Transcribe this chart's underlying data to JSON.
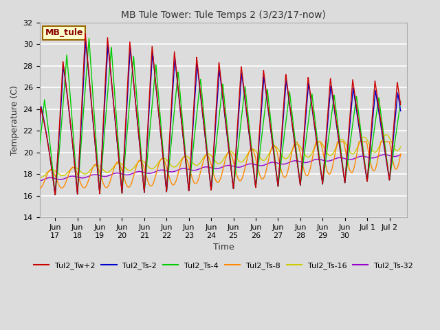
{
  "title": "MB Tule Tower: Tule Temps 2 (3/23/17-now)",
  "xlabel": "Time",
  "ylabel": "Temperature (C)",
  "ylim": [
    14,
    32
  ],
  "yticks": [
    14,
    16,
    18,
    20,
    22,
    24,
    26,
    28,
    30,
    32
  ],
  "background_color": "#dcdcdc",
  "series_colors": {
    "Tul2_Tw+2": "#cc0000",
    "Tul2_Ts-2": "#0000cc",
    "Tul2_Ts-4": "#00cc00",
    "Tul2_Ts-8": "#ff8800",
    "Tul2_Ts-16": "#cccc00",
    "Tul2_Ts-32": "#9900cc"
  },
  "legend_box": {
    "text": "MB_tule",
    "facecolor": "#ffffcc",
    "edgecolor": "#996600",
    "textcolor": "#880000"
  }
}
